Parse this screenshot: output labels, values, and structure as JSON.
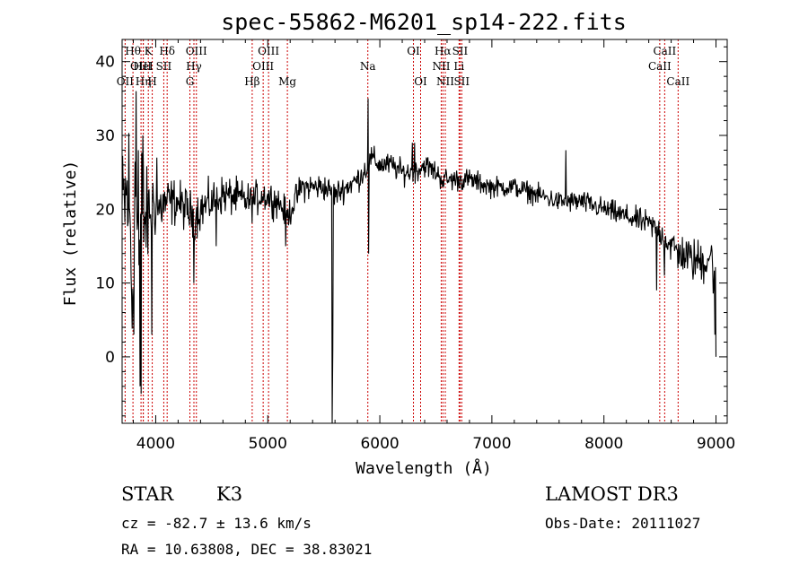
{
  "chart_data": {
    "type": "line",
    "title": "spec-55862-M6201_sp14-222.fits",
    "xlabel": "Wavelength (Å)",
    "ylabel": "Flux (relative)",
    "xlim": [
      3700,
      9100
    ],
    "ylim": [
      -9,
      43
    ],
    "xticks": [
      4000,
      5000,
      6000,
      7000,
      8000,
      9000
    ],
    "yticks": [
      0,
      10,
      20,
      30,
      40
    ],
    "spectrum_anchors": {
      "x": [
        3700,
        3760,
        3790,
        3820,
        3850,
        3880,
        3920,
        3970,
        4020,
        4100,
        4200,
        4340,
        4400,
        4600,
        4861,
        4950,
        5100,
        5175,
        5300,
        5500,
        5600,
        5700,
        5800,
        5900,
        5920,
        6000,
        6100,
        6200,
        6300,
        6400,
        6500,
        6563,
        6700,
        6800,
        7000,
        7200,
        7400,
        7600,
        7800,
        8000,
        8200,
        8400,
        8500,
        8600,
        8700,
        8800,
        8900,
        8950,
        9000
      ],
      "y": [
        20,
        22,
        8,
        24,
        12,
        20,
        18,
        21,
        20,
        21,
        21,
        19,
        20,
        22,
        21,
        22,
        21,
        19,
        23,
        23,
        22,
        23,
        24,
        26,
        27,
        26,
        26,
        25,
        25,
        26,
        25,
        24,
        24,
        24,
        23,
        23,
        22,
        21,
        21,
        20,
        19,
        18,
        17,
        15,
        14,
        13,
        13,
        14,
        10
      ],
      "noise_scale": [
        8,
        12,
        14,
        14,
        14,
        11,
        7,
        5,
        4,
        3.5,
        3,
        3,
        3,
        2.6,
        2.4,
        2.3,
        2.1,
        2,
        1.9,
        1.8,
        1.8,
        1.7,
        1.7,
        1.7,
        1.7,
        1.6,
        1.6,
        1.6,
        1.6,
        1.6,
        1.6,
        1.6,
        1.5,
        1.5,
        1.4,
        1.4,
        1.4,
        1.4,
        1.5,
        1.5,
        1.6,
        1.7,
        2,
        2.3,
        2.6,
        2.9,
        3.2,
        3.5,
        3.8
      ]
    },
    "spikes": [
      {
        "x": 3825,
        "y": 36
      },
      {
        "x": 3845,
        "y": 28
      },
      {
        "x": 3860,
        "y": -4
      },
      {
        "x": 3870,
        "y": -5
      },
      {
        "x": 3885,
        "y": 30
      },
      {
        "x": 3965,
        "y": 3
      },
      {
        "x": 4010,
        "y": 27
      },
      {
        "x": 4340,
        "y": 10
      },
      {
        "x": 4540,
        "y": 15
      },
      {
        "x": 5160,
        "y": 15
      },
      {
        "x": 5577,
        "y": -9
      },
      {
        "x": 5580,
        "y": 1
      },
      {
        "x": 5895,
        "y": 35
      },
      {
        "x": 5900,
        "y": 14
      },
      {
        "x": 6290,
        "y": 29
      },
      {
        "x": 6310,
        "y": 29
      },
      {
        "x": 7660,
        "y": 28
      },
      {
        "x": 8470,
        "y": 9
      },
      {
        "x": 8540,
        "y": 11
      },
      {
        "x": 8660,
        "y": 12
      },
      {
        "x": 8990,
        "y": 3
      },
      {
        "x": 9000,
        "y": 0
      }
    ],
    "spectral_lines": [
      {
        "name": "OII",
        "wavelength": 3727,
        "row": 3
      },
      {
        "name": "Hθ",
        "wavelength": 3797,
        "row": 1
      },
      {
        "name": "OIII",
        "wavelength": 3869,
        "row": 2
      },
      {
        "name": "Hη",
        "wavelength": 3889,
        "row": 3
      },
      {
        "name": "HeI",
        "wavelength": 3889,
        "row": 2
      },
      {
        "name": "K",
        "wavelength": 3934,
        "row": 1
      },
      {
        "name": "H",
        "wavelength": 3969,
        "row": 3
      },
      {
        "name": "SII",
        "wavelength": 4072,
        "row": 2
      },
      {
        "name": "Hδ",
        "wavelength": 4102,
        "row": 1
      },
      {
        "name": "G",
        "wavelength": 4305,
        "row": 3
      },
      {
        "name": "Hγ",
        "wavelength": 4341,
        "row": 2
      },
      {
        "name": "OIII",
        "wavelength": 4363,
        "row": 1
      },
      {
        "name": "Hβ",
        "wavelength": 4861,
        "row": 3
      },
      {
        "name": "OIII",
        "wavelength": 4959,
        "row": 2
      },
      {
        "name": "OIII",
        "wavelength": 5007,
        "row": 1
      },
      {
        "name": "Mg",
        "wavelength": 5175,
        "row": 3
      },
      {
        "name": "Na",
        "wavelength": 5893,
        "row": 2
      },
      {
        "name": "OI",
        "wavelength": 6300,
        "row": 1
      },
      {
        "name": "OI",
        "wavelength": 6364,
        "row": 3
      },
      {
        "name": "NII",
        "wavelength": 6548,
        "row": 2
      },
      {
        "name": "Hα",
        "wavelength": 6563,
        "row": 1
      },
      {
        "name": "NII",
        "wavelength": 6584,
        "row": 3
      },
      {
        "name": "Li",
        "wavelength": 6707,
        "row": 2
      },
      {
        "name": "SII",
        "wavelength": 6716,
        "row": 1
      },
      {
        "name": "SII",
        "wavelength": 6731,
        "row": 3
      },
      {
        "name": "CaII",
        "wavelength": 8498,
        "row": 2
      },
      {
        "name": "CaII",
        "wavelength": 8542,
        "row": 1
      },
      {
        "name": "CaII",
        "wavelength": 8662,
        "row": 3
      }
    ],
    "colors": {
      "spectrum": "#000000",
      "lines": "#cc0000",
      "axes": "#000000"
    }
  },
  "info": {
    "class": "STAR",
    "subclass": "K3",
    "survey": "LAMOST DR3",
    "redshift": "cz = -82.7 ± 13.6 km/s",
    "obs_date": "Obs-Date: 20111027",
    "coords": "RA =  10.63808, DEC =  38.83021"
  }
}
